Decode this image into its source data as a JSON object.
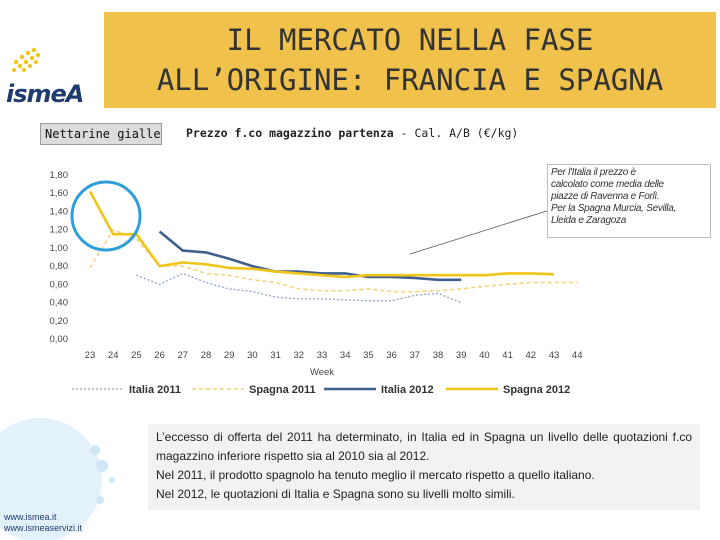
{
  "slide": {
    "title_line1": "IL MERCATO NELLA FASE",
    "title_line2": "ALL’ORIGINE: FRANCIA E SPAGNA",
    "logo_text": "ismeA",
    "product_label": "Nettarine gialle",
    "subtitle_bold": "Prezzo f.co magazzino partenza",
    "subtitle_rest": " - Cal. A/B  (€/kg)",
    "note_lines": [
      "Per l'Italia il prezzo è",
      "calcolato come media delle",
      "piazze di Ravenna e Forlì.",
      "Per la Spagna Murcia, Sevilla,",
      "Lleida e Zaragoza"
    ],
    "comment_lines": [
      "L’eccesso di offerta del 2011 ha determinato, in Italia ed in Spagna un livello delle quotazioni f.co magazzino inferiore rispetto sia al 2010 sia al 2012.",
      "Nel 2011, il prodotto spagnolo ha tenuto meglio il mercato rispetto a quello italiano.",
      "Nel 2012, le quotazioni di Italia e Spagna sono su livelli molto simili."
    ],
    "footer_links": [
      "www.ismea.it",
      "www.ismeaservizi.it"
    ],
    "colors": {
      "title_band": "#f0c14b",
      "italia_2011": "#8fa4c6",
      "spagna_2011": "#f5d277",
      "italia_2012": "#3f5f8f",
      "spagna_2012": "#f0c419",
      "highlight_circle": "#2e9fd8"
    }
  },
  "chart_data": {
    "type": "line",
    "xlabel": "Week",
    "ylabel": "",
    "x": [
      23,
      24,
      25,
      26,
      27,
      28,
      29,
      30,
      31,
      32,
      33,
      34,
      35,
      36,
      37,
      38,
      39,
      40,
      41,
      42,
      43,
      44
    ],
    "y_ticks": [
      "0,00",
      "0,20",
      "0,40",
      "0,60",
      "0,80",
      "1,00",
      "1,20",
      "1,40",
      "1,60",
      "1,80"
    ],
    "ylim": [
      0,
      1.8
    ],
    "legend_position": "bottom",
    "grid": false,
    "series": [
      {
        "name": "Italia 2011",
        "style": "dotted",
        "x": [
          25,
          26,
          27,
          28,
          29,
          30,
          31,
          32,
          33,
          34,
          35,
          36,
          37,
          38,
          39
        ],
        "values": [
          0.7,
          0.6,
          0.72,
          0.62,
          0.55,
          0.52,
          0.46,
          0.44,
          0.44,
          0.43,
          0.42,
          0.42,
          0.48,
          0.5,
          0.4
        ]
      },
      {
        "name": "Spagna 2011",
        "style": "dashed",
        "x": [
          23,
          24,
          25,
          26,
          27,
          28,
          29,
          30,
          31,
          32,
          33,
          34,
          35,
          36,
          37,
          38,
          39,
          40,
          41,
          42,
          43,
          44
        ],
        "values": [
          0.78,
          1.2,
          1.1,
          0.8,
          0.8,
          0.72,
          0.7,
          0.65,
          0.62,
          0.55,
          0.53,
          0.53,
          0.55,
          0.52,
          0.52,
          0.53,
          0.55,
          0.58,
          0.6,
          0.62,
          0.62,
          0.62
        ]
      },
      {
        "name": "Italia 2012",
        "style": "solid",
        "x": [
          26,
          27,
          28,
          29,
          30,
          31,
          32,
          33,
          34,
          35,
          36,
          37,
          38,
          39
        ],
        "values": [
          1.18,
          0.97,
          0.95,
          0.88,
          0.8,
          0.74,
          0.74,
          0.72,
          0.72,
          0.68,
          0.68,
          0.67,
          0.65,
          0.65
        ]
      },
      {
        "name": "Spagna 2012",
        "style": "solid",
        "x": [
          23,
          24,
          25,
          26,
          27,
          28,
          29,
          30,
          31,
          32,
          33,
          34,
          35,
          36,
          37,
          38,
          39,
          40,
          41,
          42,
          43
        ],
        "values": [
          1.62,
          1.15,
          1.15,
          0.8,
          0.84,
          0.82,
          0.78,
          0.77,
          0.74,
          0.72,
          0.7,
          0.68,
          0.7,
          0.7,
          0.7,
          0.7,
          0.7,
          0.7,
          0.72,
          0.72,
          0.71
        ]
      }
    ]
  }
}
